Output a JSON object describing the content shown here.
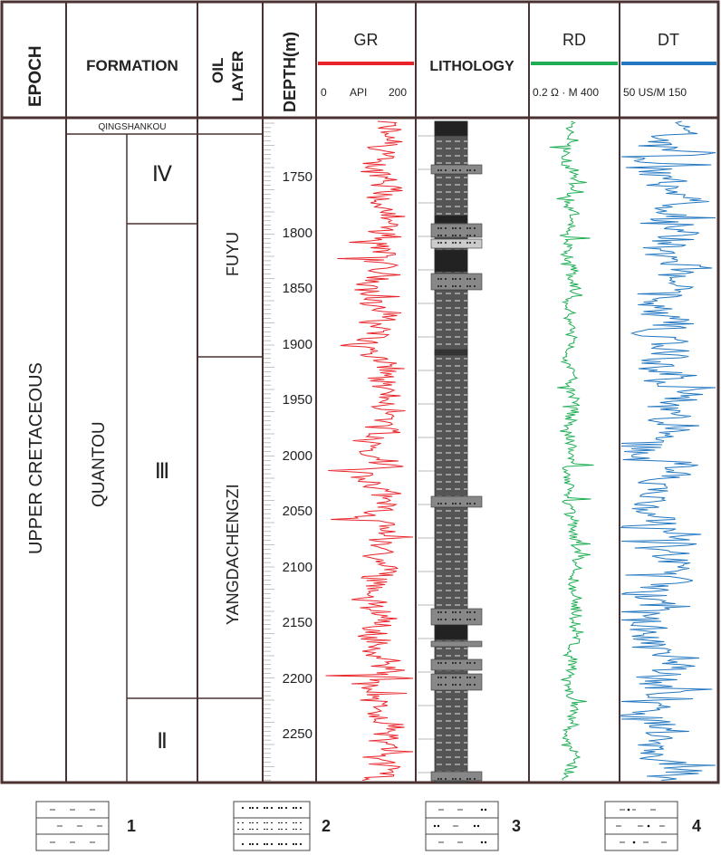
{
  "headers": {
    "epoch": "EPOCH",
    "formation": "FORMATION",
    "oil_layer_1": "OIL",
    "oil_layer_2": "LAYER",
    "depth": "DEPTH(m)",
    "gr": "GR",
    "gr_min": "0",
    "gr_unit": "API",
    "gr_max": "200",
    "lithology": "LITHOLOGY",
    "rd": "RD",
    "rd_scale": "0.2 Ω · M 400",
    "dt": "DT",
    "dt_scale": "50  US/M 150"
  },
  "colors": {
    "gr": "#e8242a",
    "rd": "#1fae55",
    "dt": "#2277c0",
    "border": "#4a3232"
  },
  "epoch": "UPPER CRETACEOUS",
  "formations": {
    "top": "QINGSHANKOU",
    "main": "QUANTOU"
  },
  "members": [
    "Ⅳ",
    "Ⅲ",
    "Ⅱ"
  ],
  "oil_layers": [
    "FUYU",
    "YANGDACHENGZI"
  ],
  "depth_ticks": [
    "1750",
    "1800",
    "1850",
    "1900",
    "1950",
    "2000",
    "2050",
    "2100",
    "2150",
    "2200",
    "2250"
  ],
  "legend": [
    {
      "num": "1",
      "pattern": "mudstone"
    },
    {
      "num": "2",
      "pattern": "sandstone"
    },
    {
      "num": "3",
      "pattern": "silty-mudstone"
    },
    {
      "num": "4",
      "pattern": "argillaceous-siltstone"
    }
  ]
}
